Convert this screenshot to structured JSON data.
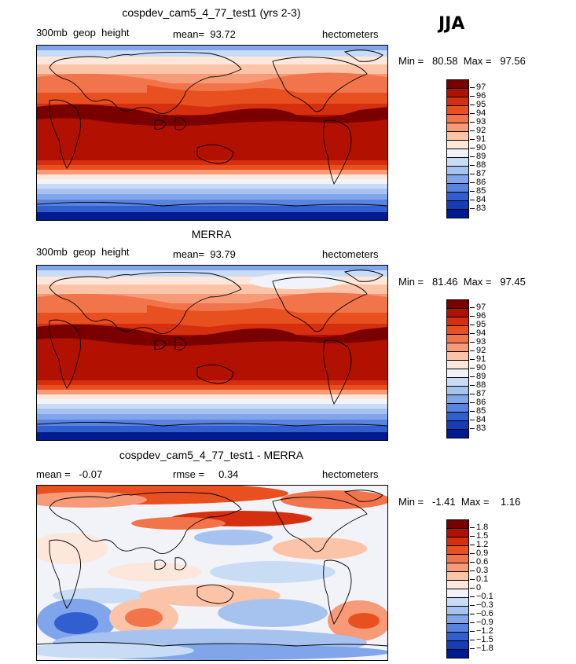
{
  "season": "JJA",
  "panels": [
    {
      "title": "cospdev_cam5_4_77_test1 (yrs 2-3)",
      "left_label": "300mb  geop  height",
      "center_label": "mean=  93.72",
      "units": "hectometers",
      "minmax": "Min =   80.58  Max =   97.56",
      "field": "model"
    },
    {
      "title": "MERRA",
      "left_label": "300mb  geop  height",
      "center_label": "mean=  93.79",
      "units": "hectometers",
      "minmax": "Min =   81.46  Max =   97.45",
      "field": "obs"
    },
    {
      "title": "cospdev_cam5_4_77_test1 - MERRA",
      "left_label": "mean =   -0.07",
      "center_label": "rmse =     0.34",
      "units": "hectometers",
      "minmax": "Min =   -1.41  Max =    1.16",
      "field": "diff"
    }
  ],
  "colorbar_abs": {
    "labels": [
      "97",
      "96",
      "95",
      "94",
      "93",
      "92",
      "91",
      "90",
      "89",
      "88",
      "87",
      "86",
      "85",
      "84",
      "83"
    ],
    "colors": [
      "#7a0000",
      "#b21000",
      "#d62f10",
      "#e8501f",
      "#f2744a",
      "#f79a78",
      "#fbc4a9",
      "#fde6da",
      "#f1f3f8",
      "#c9dcf5",
      "#a6c3f0",
      "#80a5ea",
      "#5883e0",
      "#325fd0",
      "#163cb8",
      "#001a8f"
    ]
  },
  "colorbar_diff": {
    "labels": [
      "1.8",
      "1.5",
      "1.2",
      "0.9",
      "0.6",
      "0.3",
      "0.1",
      "0",
      "−0.1",
      "−0.3",
      "−0.6",
      "−0.9",
      "−1.2",
      "−1.5",
      "−1.8"
    ],
    "colors": [
      "#7a0000",
      "#b21000",
      "#d62f10",
      "#e8501f",
      "#f2744a",
      "#f79a78",
      "#fbc4a9",
      "#fde6da",
      "#f1f3f8",
      "#c9dcf5",
      "#a6c3f0",
      "#80a5ea",
      "#5883e0",
      "#325fd0",
      "#163cb8",
      "#001a8f"
    ]
  }
}
